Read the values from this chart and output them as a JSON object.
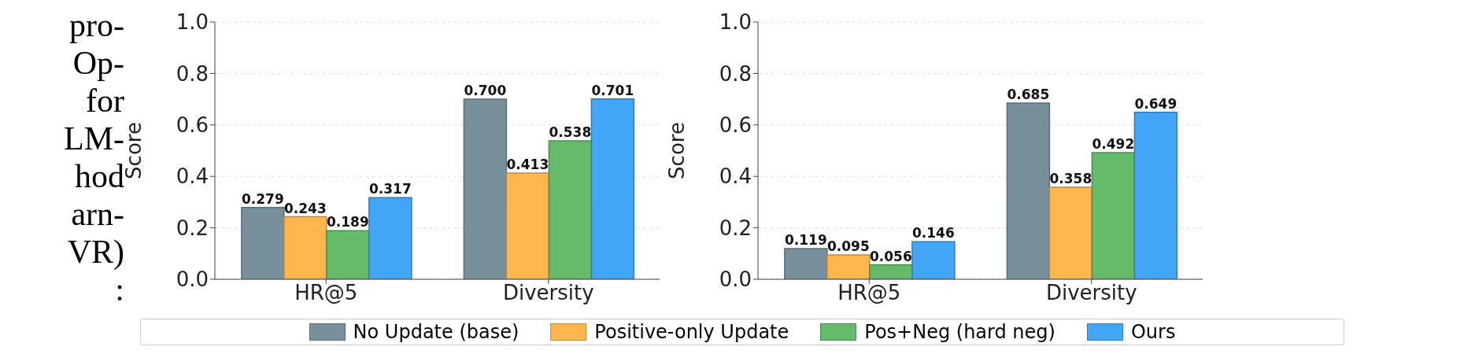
{
  "chart_data": [
    {
      "type": "bar",
      "categories": [
        "HR@5",
        "Diversity"
      ],
      "ylabel": "Score",
      "ylim": [
        0,
        1.0
      ],
      "yticks": [
        {
          "value": 0,
          "label": "0.0"
        },
        {
          "value": 0.2,
          "label": "0.2"
        },
        {
          "value": 0.4,
          "label": "0.4"
        },
        {
          "value": 0.6,
          "label": "0.6"
        },
        {
          "value": 0.8,
          "label": "0.8"
        },
        {
          "value": 1.0,
          "label": "1.0"
        }
      ],
      "grid": "y",
      "legend": "bottom",
      "annotations": [
        "pro-",
        "Op-",
        "for",
        "LM-",
        "hod",
        "arn-",
        "VR)",
        ":"
      ],
      "series": [
        {
          "name": "No Update (base)",
          "color": "#78909c",
          "values": [
            0.279,
            0.7
          ],
          "value_labels": [
            "0.279",
            "0.700"
          ]
        },
        {
          "name": "Positive-only Update",
          "color": "#ffb74d",
          "values": [
            0.243,
            0.413
          ],
          "value_labels": [
            "0.243",
            "0.413"
          ]
        },
        {
          "name": "Pos+Neg (hard neg)",
          "color": "#66bb6a",
          "values": [
            0.189,
            0.538
          ],
          "value_labels": [
            "0.189",
            "0.538"
          ]
        },
        {
          "name": "Ours",
          "color": "#42a5f5",
          "values": [
            0.317,
            0.701
          ],
          "value_labels": [
            "0.317",
            "0.701"
          ]
        }
      ]
    },
    {
      "type": "bar",
      "categories": [
        "HR@5",
        "Diversity"
      ],
      "ylabel": "Score",
      "ylim": [
        0,
        1.0
      ],
      "yticks": [
        {
          "value": 0,
          "label": "0.0"
        },
        {
          "value": 0.2,
          "label": "0.2"
        },
        {
          "value": 0.4,
          "label": "0.4"
        },
        {
          "value": 0.6,
          "label": "0.6"
        },
        {
          "value": 0.8,
          "label": "0.8"
        },
        {
          "value": 1.0,
          "label": "1.0"
        }
      ],
      "grid": "y",
      "series": [
        {
          "color": "#78909c",
          "values": [
            0.119,
            0.685
          ],
          "value_labels": [
            "0.119",
            "0.685"
          ]
        },
        {
          "color": "#ffb74d",
          "values": [
            0.095,
            0.358
          ],
          "value_labels": [
            "0.095",
            "0.358"
          ]
        },
        {
          "color": "#66bb6a",
          "values": [
            0.056,
            0.492
          ],
          "value_labels": [
            "0.056",
            "0.492"
          ]
        },
        {
          "color": "#42a5f5",
          "values": [
            0.146,
            0.649
          ],
          "value_labels": [
            "0.146",
            "0.649"
          ]
        }
      ]
    }
  ]
}
